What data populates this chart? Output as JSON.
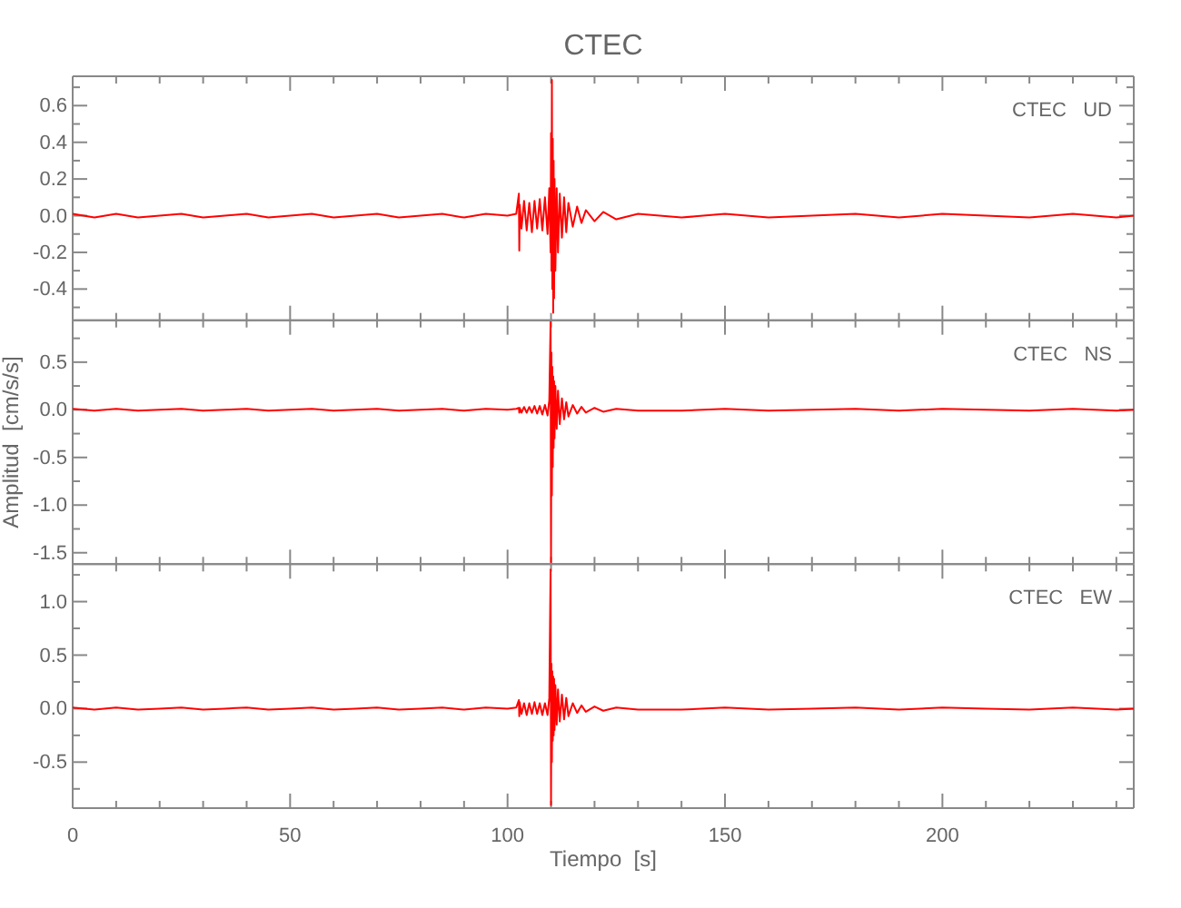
{
  "chart_data": [
    {
      "type": "line",
      "title": "CTEC",
      "tick_labels": "y",
      "x": [
        0,
        5,
        10,
        15,
        20,
        25,
        30,
        35,
        40,
        45,
        50,
        55,
        60,
        65,
        70,
        75,
        80,
        85,
        90,
        95,
        100,
        102,
        102.6,
        102.7,
        102.8,
        103.2,
        103.8,
        104.4,
        105,
        105.6,
        106.2,
        106.8,
        107.4,
        108,
        108.6,
        109.2,
        109.6,
        109.9,
        110,
        110.1,
        110.2,
        110.3,
        110.4,
        110.5,
        110.6,
        110.7,
        110.8,
        111,
        111.3,
        111.6,
        112,
        112.5,
        113,
        113.5,
        114,
        115,
        116,
        117,
        118,
        120,
        122,
        125,
        130,
        140,
        150,
        160,
        170,
        180,
        190,
        200,
        210,
        220,
        230,
        240,
        244
      ],
      "series": [
        {
          "name": "CTEC   UD",
          "color": "#ff0000",
          "values": [
            0.01,
            -0.01,
            0.01,
            -0.01,
            0,
            0.01,
            -0.01,
            0,
            0.01,
            -0.01,
            0,
            0.01,
            -0.01,
            0,
            0.01,
            -0.01,
            0,
            0.01,
            -0.01,
            0.01,
            0,
            0.01,
            0.12,
            -0.19,
            0.06,
            -0.07,
            0.08,
            -0.08,
            0.07,
            -0.09,
            0.08,
            -0.07,
            0.09,
            -0.08,
            0.1,
            -0.1,
            0.15,
            -0.2,
            0.45,
            -0.3,
            0.74,
            -0.4,
            0.42,
            -0.53,
            0.3,
            -0.45,
            0.2,
            -0.3,
            0.15,
            -0.2,
            0.12,
            -0.12,
            0.1,
            -0.09,
            0.07,
            -0.06,
            0.05,
            -0.04,
            0.03,
            -0.03,
            0.02,
            -0.02,
            0.01,
            -0.01,
            0.01,
            -0.01,
            0,
            0.01,
            -0.01,
            0.01,
            0,
            -0.01,
            0.01,
            -0.01,
            0
          ]
        }
      ],
      "xlim": [
        0,
        244
      ],
      "xticks": [
        0,
        {
          "value": 10,
          "label": null
        },
        {
          "value": 20,
          "label": null
        },
        {
          "value": 30,
          "label": null
        },
        {
          "value": 40,
          "label": null
        },
        50,
        {
          "value": 60,
          "label": null
        },
        {
          "value": 70,
          "label": null
        },
        {
          "value": 80,
          "label": null
        },
        {
          "value": 90,
          "label": null
        },
        100,
        {
          "value": 110,
          "label": null
        },
        {
          "value": 120,
          "label": null
        },
        {
          "value": 130,
          "label": null
        },
        {
          "value": 140,
          "label": null
        },
        150,
        {
          "value": 160,
          "label": null
        },
        {
          "value": 170,
          "label": null
        },
        {
          "value": 180,
          "label": null
        },
        {
          "value": 190,
          "label": null
        },
        200,
        {
          "value": 210,
          "label": null
        },
        {
          "value": 220,
          "label": null
        },
        {
          "value": 230,
          "label": null
        },
        {
          "value": 240,
          "label": null
        }
      ],
      "ylim": [
        -0.57,
        0.76
      ],
      "yticks": [
        {
          "value": -0.5,
          "label": null
        },
        {
          "value": -0.4,
          "label": "-0.4"
        },
        {
          "value": -0.3,
          "label": null
        },
        {
          "value": -0.2,
          "label": "-0.2"
        },
        {
          "value": -0.1,
          "label": null
        },
        {
          "value": 0,
          "label": "0.0"
        },
        {
          "value": 0.1,
          "label": null
        },
        {
          "value": 0.2,
          "label": "0.2"
        },
        {
          "value": 0.3,
          "label": null
        },
        {
          "value": 0.4,
          "label": "0.4"
        },
        {
          "value": 0.5,
          "label": null
        },
        {
          "value": 0.6,
          "label": "0.6"
        },
        {
          "value": 0.7,
          "label": null
        }
      ]
    },
    {
      "type": "line",
      "ylabel": "Amplitud  [cm/s/s]",
      "tick_labels": "y",
      "x": [
        0,
        5,
        10,
        15,
        20,
        25,
        30,
        35,
        40,
        45,
        50,
        55,
        60,
        65,
        70,
        75,
        80,
        85,
        90,
        95,
        100,
        102,
        102.6,
        102.7,
        102.8,
        103.2,
        103.8,
        104.4,
        105,
        105.6,
        106.2,
        106.8,
        107.4,
        108,
        108.6,
        109.2,
        109.6,
        109.9,
        110,
        110.1,
        110.2,
        110.3,
        110.4,
        110.5,
        110.6,
        110.7,
        110.8,
        111,
        111.3,
        111.6,
        112,
        112.5,
        113,
        113.5,
        114,
        115,
        116,
        117,
        118,
        120,
        122,
        125,
        130,
        140,
        150,
        160,
        170,
        180,
        190,
        200,
        210,
        220,
        230,
        240,
        244
      ],
      "series": [
        {
          "name": "CTEC   NS",
          "color": "#ff0000",
          "values": [
            0.01,
            -0.01,
            0.01,
            -0.01,
            0,
            0.01,
            -0.01,
            0,
            0.01,
            -0.01,
            0,
            0.01,
            -0.01,
            0,
            0.01,
            -0.01,
            0,
            0.01,
            -0.01,
            0.01,
            0,
            0.01,
            0.02,
            -0.03,
            0.02,
            -0.03,
            0.03,
            -0.03,
            0.03,
            -0.03,
            0.04,
            -0.04,
            0.04,
            -0.05,
            0.05,
            -0.06,
            0.1,
            0.92,
            -1.6,
            0.6,
            -0.9,
            0.45,
            -0.6,
            0.35,
            -0.4,
            0.3,
            -0.3,
            0.25,
            -0.2,
            0.2,
            -0.15,
            0.12,
            -0.1,
            0.08,
            -0.07,
            0.05,
            -0.04,
            0.03,
            -0.03,
            0.02,
            -0.02,
            0.01,
            -0.01,
            -0.01,
            0.01,
            -0.01,
            0,
            0.01,
            -0.01,
            0.01,
            0,
            -0.01,
            0.01,
            -0.01,
            0
          ]
        }
      ],
      "xlim": [
        0,
        244
      ],
      "xticks": [
        0,
        {
          "value": 10,
          "label": null
        },
        {
          "value": 20,
          "label": null
        },
        {
          "value": 30,
          "label": null
        },
        {
          "value": 40,
          "label": null
        },
        50,
        {
          "value": 60,
          "label": null
        },
        {
          "value": 70,
          "label": null
        },
        {
          "value": 80,
          "label": null
        },
        {
          "value": 90,
          "label": null
        },
        100,
        {
          "value": 110,
          "label": null
        },
        {
          "value": 120,
          "label": null
        },
        {
          "value": 130,
          "label": null
        },
        {
          "value": 140,
          "label": null
        },
        150,
        {
          "value": 160,
          "label": null
        },
        {
          "value": 170,
          "label": null
        },
        {
          "value": 180,
          "label": null
        },
        {
          "value": 190,
          "label": null
        },
        200,
        {
          "value": 210,
          "label": null
        },
        {
          "value": 220,
          "label": null
        },
        {
          "value": 230,
          "label": null
        },
        {
          "value": 240,
          "label": null
        }
      ],
      "ylim": [
        -1.62,
        0.94
      ],
      "yticks": [
        {
          "value": -1.5,
          "label": "-1.5"
        },
        {
          "value": -1.25,
          "label": null
        },
        {
          "value": -1,
          "label": "-1.0"
        },
        {
          "value": -0.75,
          "label": null
        },
        {
          "value": -0.5,
          "label": "-0.5"
        },
        {
          "value": -0.25,
          "label": null
        },
        {
          "value": 0,
          "label": "0.0"
        },
        {
          "value": 0.25,
          "label": null
        },
        {
          "value": 0.5,
          "label": "0.5"
        },
        {
          "value": 0.75,
          "label": null
        }
      ]
    },
    {
      "type": "line",
      "xlabel": "Tiempo  [s]",
      "x": [
        0,
        5,
        10,
        15,
        20,
        25,
        30,
        35,
        40,
        45,
        50,
        55,
        60,
        65,
        70,
        75,
        80,
        85,
        90,
        95,
        100,
        102,
        102.6,
        102.7,
        102.8,
        103.2,
        103.8,
        104.4,
        105,
        105.6,
        106.2,
        106.8,
        107.4,
        108,
        108.6,
        109.2,
        109.6,
        109.9,
        110,
        110.1,
        110.2,
        110.3,
        110.4,
        110.5,
        110.6,
        110.7,
        110.8,
        111,
        111.3,
        111.6,
        112,
        112.5,
        113,
        113.5,
        114,
        115,
        116,
        117,
        118,
        120,
        122,
        125,
        130,
        140,
        150,
        160,
        170,
        180,
        190,
        200,
        210,
        220,
        230,
        240,
        244
      ],
      "series": [
        {
          "name": "CTEC   EW",
          "color": "#ff0000",
          "values": [
            0.01,
            -0.01,
            0.01,
            -0.01,
            0,
            0.01,
            -0.01,
            0,
            0.01,
            -0.01,
            0,
            0.01,
            -0.01,
            0,
            0.01,
            -0.01,
            0,
            0.01,
            -0.01,
            0.01,
            0,
            0.01,
            0.08,
            -0.07,
            0.06,
            -0.05,
            0.05,
            -0.06,
            0.05,
            -0.05,
            0.06,
            -0.05,
            0.05,
            -0.06,
            0.05,
            -0.06,
            0.1,
            1.3,
            -0.9,
            0.42,
            -0.5,
            0.35,
            -0.3,
            0.3,
            -0.25,
            0.28,
            -0.2,
            0.22,
            -0.15,
            0.18,
            -0.12,
            0.13,
            -0.1,
            0.1,
            -0.07,
            0.05,
            -0.04,
            0.03,
            -0.03,
            0.02,
            -0.02,
            0.01,
            -0.01,
            -0.01,
            0.01,
            -0.01,
            0,
            0.01,
            -0.01,
            0.01,
            0,
            -0.01,
            0.01,
            -0.01,
            0
          ]
        }
      ],
      "xlim": [
        0,
        244
      ],
      "xticks": [
        0,
        {
          "value": 10,
          "label": null
        },
        {
          "value": 20,
          "label": null
        },
        {
          "value": 30,
          "label": null
        },
        {
          "value": 40,
          "label": null
        },
        50,
        {
          "value": 60,
          "label": null
        },
        {
          "value": 70,
          "label": null
        },
        {
          "value": 80,
          "label": null
        },
        {
          "value": 90,
          "label": null
        },
        100,
        {
          "value": 110,
          "label": null
        },
        {
          "value": 120,
          "label": null
        },
        {
          "value": 130,
          "label": null
        },
        {
          "value": 140,
          "label": null
        },
        150,
        {
          "value": 160,
          "label": null
        },
        {
          "value": 170,
          "label": null
        },
        {
          "value": 180,
          "label": null
        },
        {
          "value": 190,
          "label": null
        },
        200,
        {
          "value": 210,
          "label": null
        },
        {
          "value": 220,
          "label": null
        },
        {
          "value": 230,
          "label": null
        },
        {
          "value": 240,
          "label": null
        }
      ],
      "ylim": [
        -0.93,
        1.35
      ],
      "yticks": [
        {
          "value": -0.75,
          "label": null
        },
        {
          "value": -0.5,
          "label": "-0.5"
        },
        {
          "value": -0.25,
          "label": null
        },
        {
          "value": 0,
          "label": "0.0"
        },
        {
          "value": 0.25,
          "label": null
        },
        {
          "value": 0.5,
          "label": "0.5"
        },
        {
          "value": 0.75,
          "label": null
        },
        {
          "value": 1,
          "label": "1.0"
        },
        {
          "value": 1.25,
          "label": null
        }
      ]
    }
  ]
}
